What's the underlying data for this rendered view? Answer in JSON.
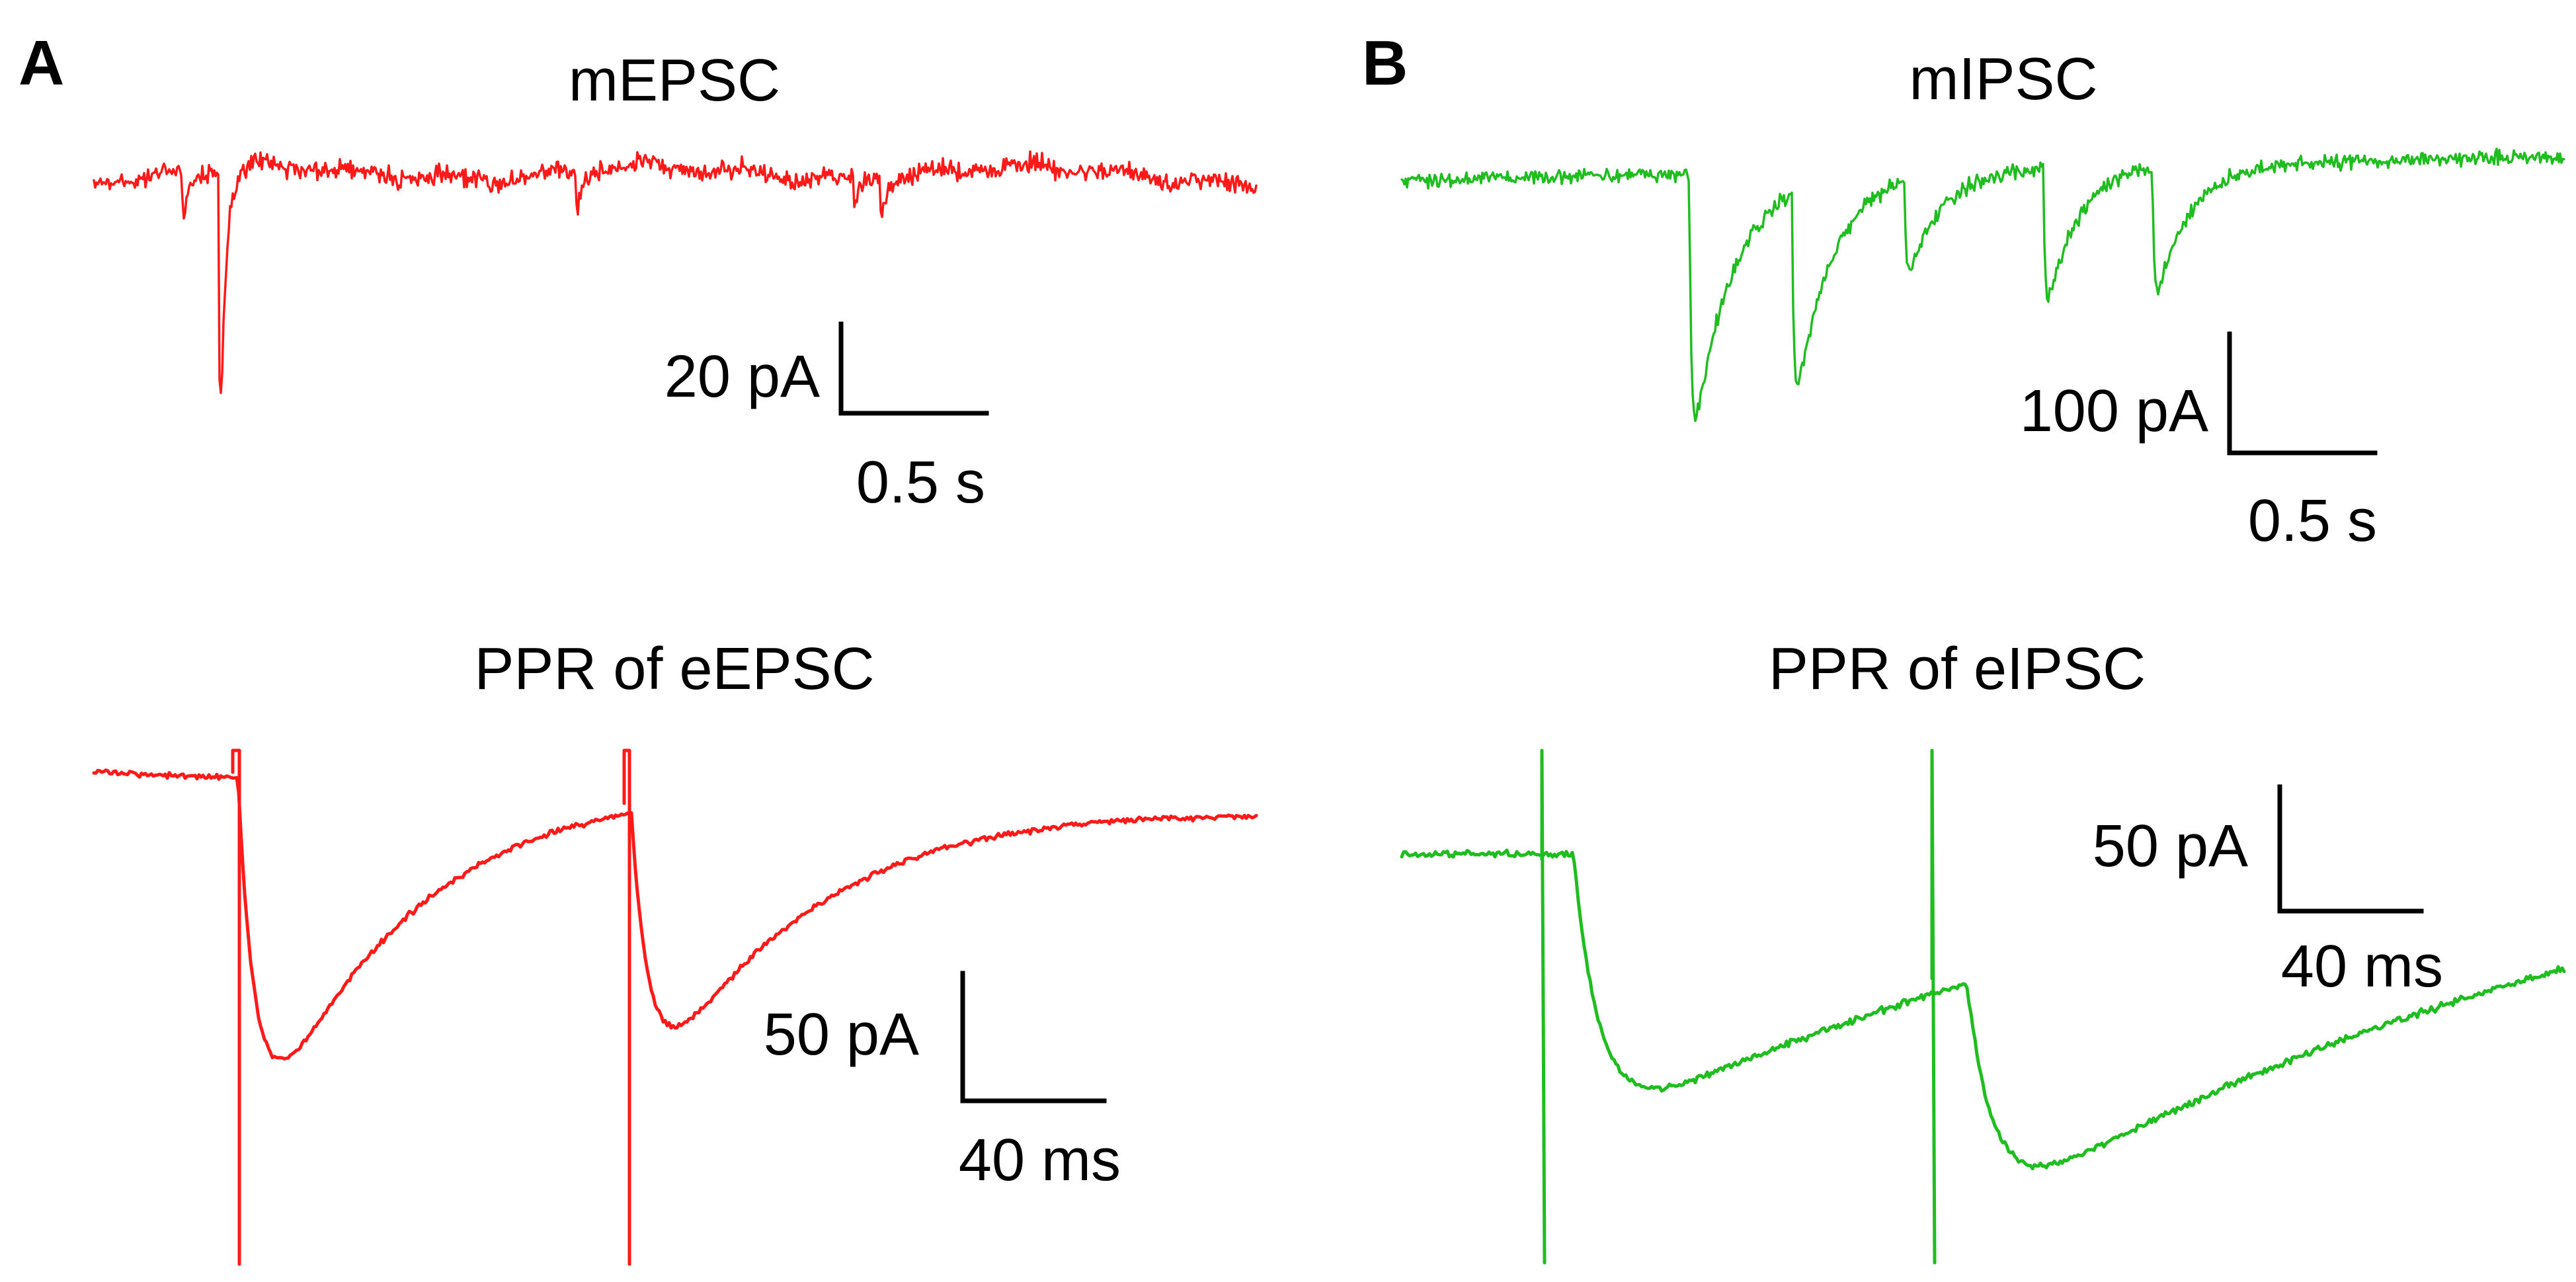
{
  "colors": {
    "excitatory": "#ff1a1a",
    "inhibitory": "#1fbd1f",
    "text": "#000000"
  },
  "panels": [
    {
      "letter": "A",
      "top_title": "mEPSC",
      "top_scale": {
        "amplitude_label": "20 pA",
        "time_label": "0.5 s"
      },
      "bottom_title": "PPR of eEPSC",
      "bottom_scale": {
        "amplitude_label": "50 pA",
        "time_label": "40 ms"
      }
    },
    {
      "letter": "B",
      "top_title": "mIPSC",
      "top_scale": {
        "amplitude_label": "100 pA",
        "time_label": "0.5 s"
      },
      "bottom_title": "PPR of eIPSC",
      "bottom_scale": {
        "amplitude_label": "50 pA",
        "time_label": "40 ms"
      }
    }
  ]
}
